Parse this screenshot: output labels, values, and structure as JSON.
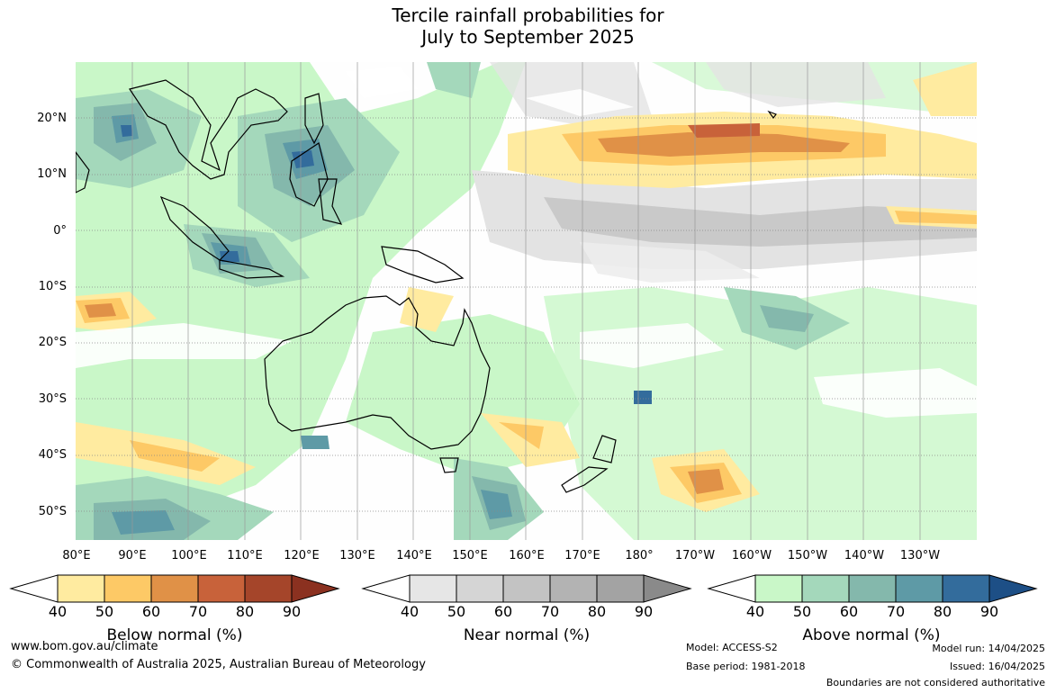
{
  "title_line1": "Tercile rainfall probabilities for",
  "title_line2": "July to September 2025",
  "lat_labels": [
    "20°N",
    "10°N",
    "0°",
    "10°S",
    "20°S",
    "30°S",
    "40°S",
    "50°S"
  ],
  "lon_labels": [
    "80°E",
    "90°E",
    "100°E",
    "110°E",
    "120°E",
    "130°E",
    "140°E",
    "150°E",
    "160°E",
    "170°E",
    "180°",
    "170°W",
    "160°W",
    "150°W",
    "140°W",
    "130°W"
  ],
  "colorbars": [
    {
      "label": "Below normal (%)",
      "ticks": [
        "40",
        "50",
        "60",
        "70",
        "80",
        "90"
      ],
      "colors": [
        "#ffffff",
        "#ffeba0",
        "#fdc966",
        "#e09147",
        "#c8623a",
        "#a5452a",
        "#8b3120"
      ]
    },
    {
      "label": "Near normal (%)",
      "ticks": [
        "40",
        "50",
        "60",
        "70",
        "80",
        "90"
      ],
      "colors": [
        "#ffffff",
        "#e6e6e6",
        "#d5d5d5",
        "#c3c3c3",
        "#b3b3b3",
        "#a3a3a3",
        "#8a8a8a"
      ]
    },
    {
      "label": "Above normal (%)",
      "ticks": [
        "40",
        "50",
        "60",
        "70",
        "80",
        "90"
      ],
      "colors": [
        "#ffffff",
        "#c9f7c8",
        "#a4d8bb",
        "#84b8ac",
        "#5e9aa6",
        "#336c9c",
        "#1d4f86"
      ]
    }
  ],
  "footer": {
    "website": "www.bom.gov.au/climate",
    "copyright": "© Commonwealth of Australia 2025, Australian Bureau of Meteorology",
    "model": "Model: ACCESS-S2",
    "base_period": "Base period: 1981-2018",
    "model_run": "Model run: 14/04/2025",
    "issued": "Issued: 16/04/2025",
    "disclaimer": "Boundaries are not considered authoritative"
  }
}
